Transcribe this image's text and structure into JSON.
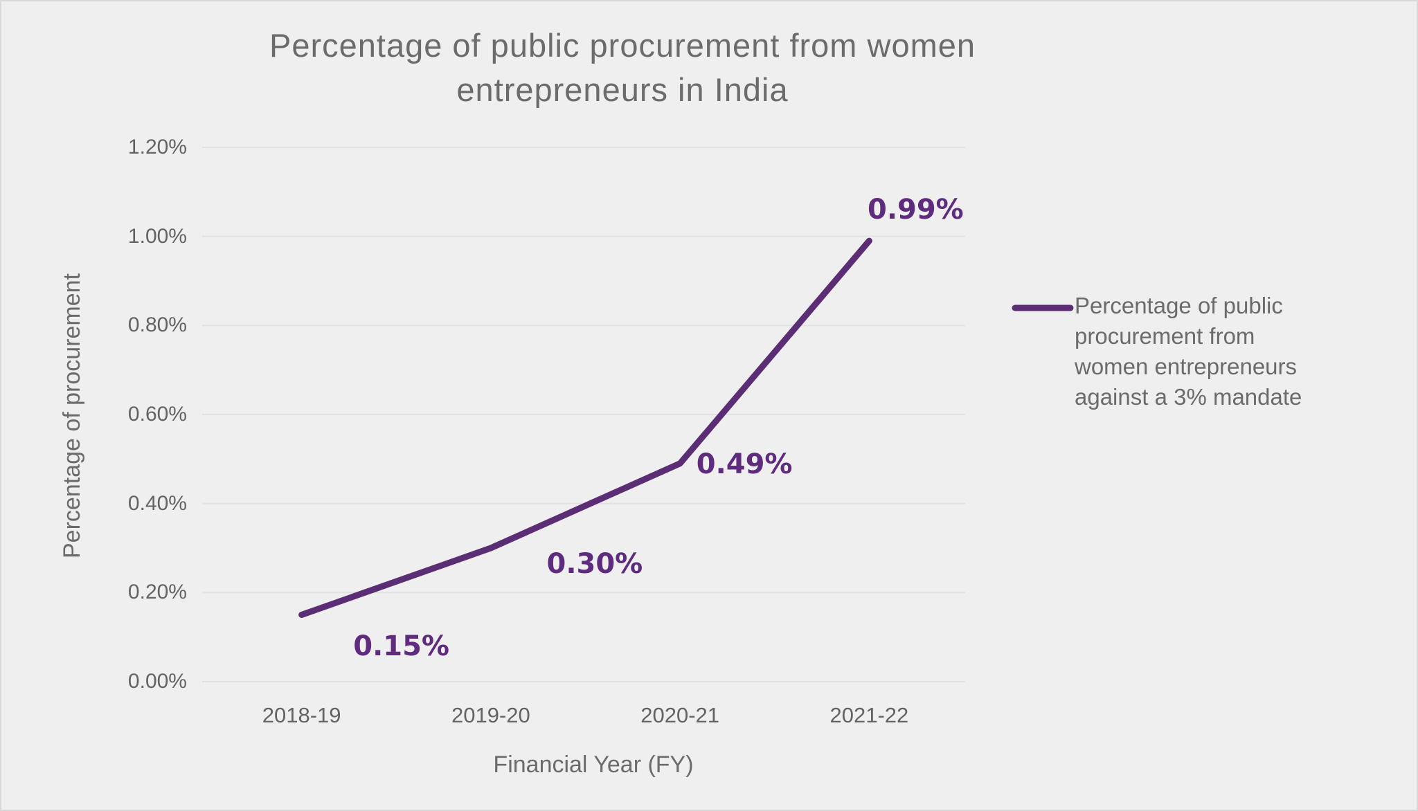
{
  "page": {
    "background": "#efefef",
    "border_color": "#d8d8d8"
  },
  "colors": {
    "line": "#5b2d74",
    "data_label": "#5e2b7e",
    "text": "#6b6b6b",
    "gridline": "#e2e2e2"
  },
  "chart_data": {
    "type": "line",
    "title": "Percentage of public procurement from women\nentrepreneurs in India",
    "xlabel": "Financial Year (FY)",
    "ylabel": "Percentage of procurement",
    "categories": [
      "2018-19",
      "2019-20",
      "2020-21",
      "2021-22"
    ],
    "series": [
      {
        "name": "Percentage of public procurement from women entrepreneurs against a 3% mandate",
        "values": [
          0.15,
          0.3,
          0.49,
          0.99
        ],
        "point_labels": [
          "0.15%",
          "0.30%",
          "0.49%",
          "0.99%"
        ],
        "color": "#5b2d74"
      }
    ],
    "ylim": [
      0,
      1.2
    ],
    "ytick_step": 0.2,
    "ytick_labels": [
      "0.00%",
      "0.20%",
      "0.40%",
      "0.60%",
      "0.80%",
      "1.00%",
      "1.20%"
    ],
    "grid": "horizontal",
    "legend_position": "right"
  },
  "legend": {
    "label": "Percentage of public\nprocurement from\nwomen entrepreneurs\nagainst a 3% mandate"
  }
}
